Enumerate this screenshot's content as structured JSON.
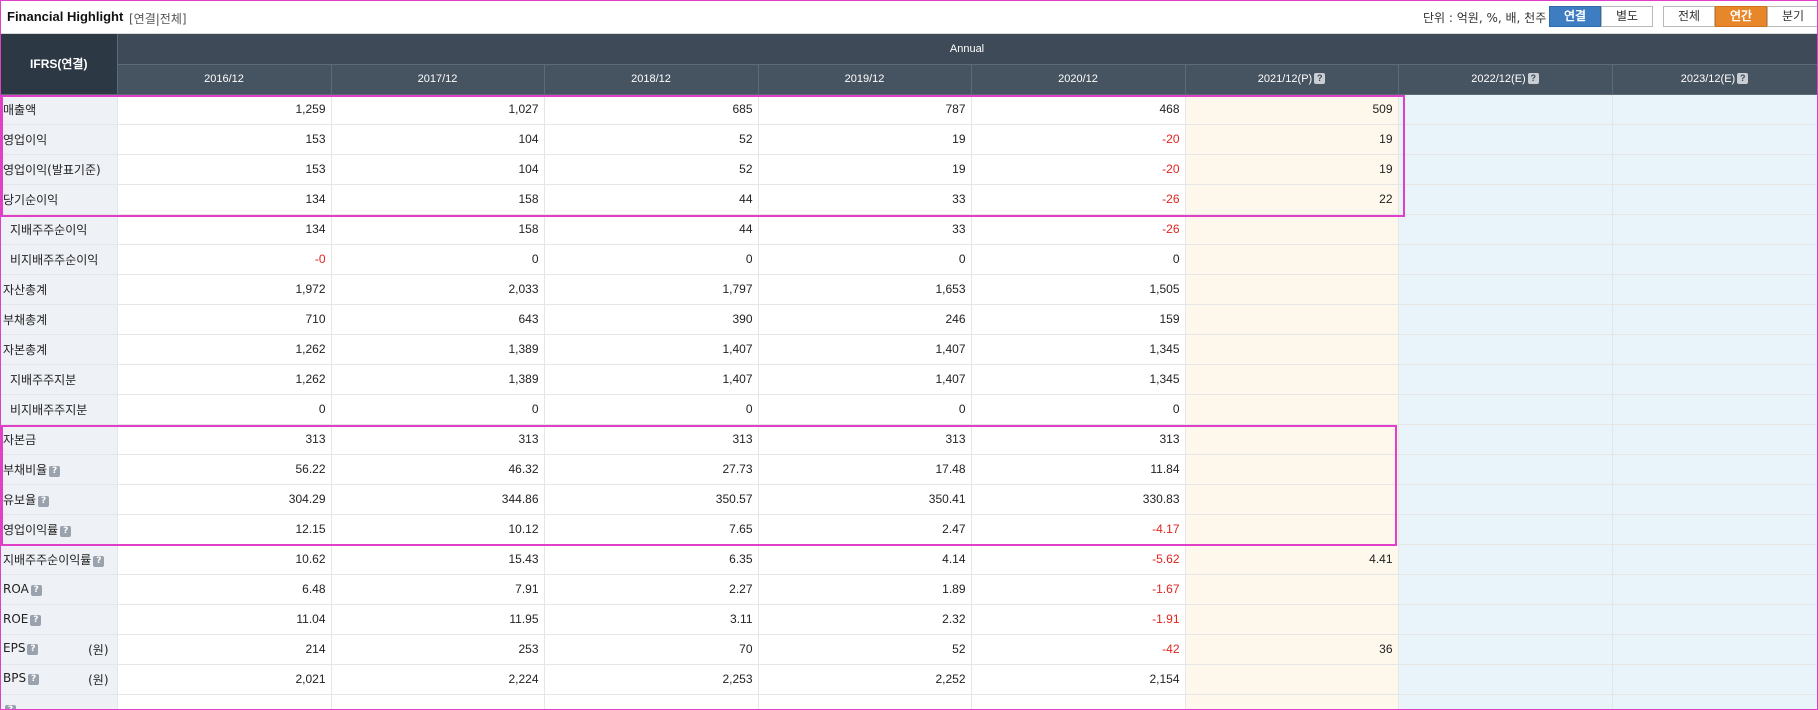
{
  "header": {
    "title": "Financial Highlight",
    "subtitle": "[연결|전체]",
    "unit_label": "단위 : 억원, %, 배, 천주",
    "scope_buttons": [
      "연결",
      "별도"
    ],
    "period_buttons": [
      "전체",
      "연간",
      "분기"
    ],
    "active_scope": "연결",
    "active_period": "연간"
  },
  "table": {
    "corner_label": "IFRS(연결)",
    "group_label": "Annual",
    "columns": [
      "2016/12",
      "2017/12",
      "2018/12",
      "2019/12",
      "2020/12",
      "2021/12(P)",
      "2022/12(E)",
      "2023/12(E)"
    ],
    "help_mark": "?",
    "unit_won": "(원)",
    "rows": [
      {
        "label": "매출액",
        "sub": false,
        "help": false,
        "won": false,
        "values": [
          "1,259",
          "1,027",
          "685",
          "787",
          "468",
          "509",
          "",
          ""
        ]
      },
      {
        "label": "영업이익",
        "sub": false,
        "help": false,
        "won": false,
        "values": [
          "153",
          "104",
          "52",
          "19",
          "-20",
          "19",
          "",
          ""
        ]
      },
      {
        "label": "영업이익(발표기준)",
        "sub": false,
        "help": false,
        "won": false,
        "values": [
          "153",
          "104",
          "52",
          "19",
          "-20",
          "19",
          "",
          ""
        ]
      },
      {
        "label": "당기순이익",
        "sub": false,
        "help": false,
        "won": false,
        "values": [
          "134",
          "158",
          "44",
          "33",
          "-26",
          "22",
          "",
          ""
        ]
      },
      {
        "label": "지배주주순이익",
        "sub": true,
        "help": false,
        "won": false,
        "values": [
          "134",
          "158",
          "44",
          "33",
          "-26",
          "",
          "",
          ""
        ]
      },
      {
        "label": "비지배주주순이익",
        "sub": true,
        "help": false,
        "won": false,
        "values": [
          "-0",
          "0",
          "0",
          "0",
          "0",
          "",
          "",
          ""
        ]
      },
      {
        "label": "자산총계",
        "sub": false,
        "help": false,
        "won": false,
        "values": [
          "1,972",
          "2,033",
          "1,797",
          "1,653",
          "1,505",
          "",
          "",
          ""
        ]
      },
      {
        "label": "부채총계",
        "sub": false,
        "help": false,
        "won": false,
        "values": [
          "710",
          "643",
          "390",
          "246",
          "159",
          "",
          "",
          ""
        ]
      },
      {
        "label": "자본총계",
        "sub": false,
        "help": false,
        "won": false,
        "values": [
          "1,262",
          "1,389",
          "1,407",
          "1,407",
          "1,345",
          "",
          "",
          ""
        ]
      },
      {
        "label": "지배주주지분",
        "sub": true,
        "help": false,
        "won": false,
        "values": [
          "1,262",
          "1,389",
          "1,407",
          "1,407",
          "1,345",
          "",
          "",
          ""
        ]
      },
      {
        "label": "비지배주주지분",
        "sub": true,
        "help": false,
        "won": false,
        "values": [
          "0",
          "0",
          "0",
          "0",
          "0",
          "",
          "",
          ""
        ]
      },
      {
        "label": "자본금",
        "sub": false,
        "help": false,
        "won": false,
        "values": [
          "313",
          "313",
          "313",
          "313",
          "313",
          "",
          "",
          ""
        ]
      },
      {
        "label": "부채비율",
        "sub": false,
        "help": true,
        "won": false,
        "values": [
          "56.22",
          "46.32",
          "27.73",
          "17.48",
          "11.84",
          "",
          "",
          ""
        ]
      },
      {
        "label": "유보율",
        "sub": false,
        "help": true,
        "won": false,
        "values": [
          "304.29",
          "344.86",
          "350.57",
          "350.41",
          "330.83",
          "",
          "",
          ""
        ]
      },
      {
        "label": "영업이익률",
        "sub": false,
        "help": true,
        "won": false,
        "values": [
          "12.15",
          "10.12",
          "7.65",
          "2.47",
          "-4.17",
          "",
          "",
          ""
        ]
      },
      {
        "label": "지배주주순이익률",
        "sub": false,
        "help": true,
        "won": false,
        "values": [
          "10.62",
          "15.43",
          "6.35",
          "4.14",
          "-5.62",
          "4.41",
          "",
          ""
        ]
      },
      {
        "label": "ROA",
        "sub": false,
        "help": true,
        "won": false,
        "values": [
          "6.48",
          "7.91",
          "2.27",
          "1.89",
          "-1.67",
          "",
          "",
          ""
        ]
      },
      {
        "label": "ROE",
        "sub": false,
        "help": true,
        "won": false,
        "values": [
          "11.04",
          "11.95",
          "3.11",
          "2.32",
          "-1.91",
          "",
          "",
          ""
        ]
      },
      {
        "label": "EPS",
        "sub": false,
        "help": true,
        "won": true,
        "values": [
          "214",
          "253",
          "70",
          "52",
          "-42",
          "36",
          "",
          ""
        ]
      },
      {
        "label": "BPS",
        "sub": false,
        "help": true,
        "won": true,
        "values": [
          "2,021",
          "2,224",
          "2,253",
          "2,252",
          "2,154",
          "",
          "",
          ""
        ]
      },
      {
        "label": "",
        "sub": false,
        "help": true,
        "won": false,
        "values": [
          "",
          "",
          "",
          "",
          "",
          "",
          "",
          ""
        ]
      }
    ]
  },
  "colors": {
    "header_dark": "#3e4a57",
    "negative": "#e0231e",
    "provisional_bg": "#fef8ec",
    "estimate_bg": "#e8f4fa",
    "highlight": "#e040c8",
    "active_scope": "#3f7dc2",
    "active_period": "#e8872a"
  }
}
